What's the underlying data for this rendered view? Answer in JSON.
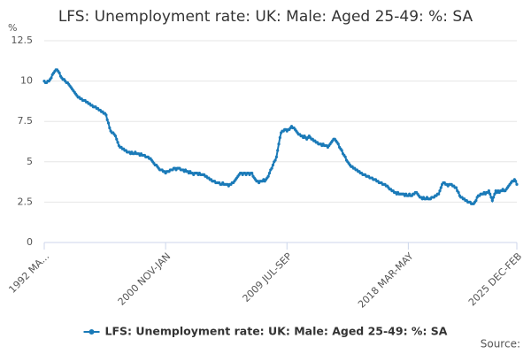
{
  "chart_data": {
    "type": "line",
    "title": "LFS: Unemployment rate: UK: Male: Aged 25-49: %: SA",
    "y_label": "%",
    "source": "Source:",
    "ylim": [
      0,
      12.5
    ],
    "yticks": [
      0,
      2.5,
      5,
      7.5,
      10,
      12.5
    ],
    "grid": true,
    "categories": [
      "1992 MA...",
      null,
      null,
      null,
      null,
      null,
      null,
      null,
      null,
      null,
      null,
      null,
      null,
      null,
      null,
      null,
      null,
      null,
      null,
      null,
      null,
      null,
      null,
      null,
      null,
      null,
      null,
      null,
      null,
      null,
      null,
      null,
      null,
      null,
      null,
      null,
      null,
      null,
      null,
      null,
      null,
      null,
      null,
      null,
      null,
      null,
      null,
      null,
      null,
      null,
      null,
      null,
      null,
      null,
      null,
      null,
      null,
      null,
      null,
      null,
      null,
      null,
      null,
      null,
      null,
      null,
      null,
      null,
      null,
      null,
      null,
      null,
      null,
      null,
      null,
      null,
      null,
      null,
      null,
      null,
      null,
      null,
      null,
      null,
      null,
      null,
      null,
      null,
      null,
      null,
      null,
      null,
      null,
      null,
      null,
      null,
      null,
      null,
      null,
      null,
      null,
      null,
      null,
      null,
      "2000 NOV-JAN",
      null,
      null,
      null,
      null,
      null,
      null,
      null,
      null,
      null,
      null,
      null,
      null,
      null,
      null,
      null,
      null,
      null,
      null,
      null,
      null,
      null,
      null,
      null,
      null,
      null,
      null,
      null,
      null,
      null,
      null,
      null,
      null,
      null,
      null,
      null,
      null,
      null,
      null,
      null,
      null,
      null,
      null,
      null,
      null,
      null,
      null,
      null,
      null,
      null,
      null,
      null,
      null,
      null,
      null,
      null,
      null,
      null,
      null,
      null,
      null,
      null,
      null,
      null,
      null,
      null,
      null,
      null,
      null,
      null,
      null,
      null,
      null,
      null,
      null,
      null,
      null,
      null,
      null,
      null,
      null,
      null,
      null,
      null,
      null,
      null,
      null,
      null,
      null,
      null,
      null,
      null,
      null,
      null,
      null,
      null,
      null,
      null,
      null,
      null,
      null,
      null,
      null,
      null,
      "2009 JUL-SEP",
      null,
      null,
      null,
      null,
      null,
      null,
      null,
      null,
      null,
      null,
      null,
      null,
      null,
      null,
      null,
      null,
      null,
      null,
      null,
      null,
      null,
      null,
      null,
      null,
      null,
      null,
      null,
      null,
      null,
      null,
      null,
      null,
      null,
      null,
      null,
      null,
      null,
      null,
      null,
      null,
      null,
      null,
      null,
      null,
      null,
      null,
      null,
      null,
      null,
      null,
      null,
      null,
      null,
      null,
      null,
      null,
      null,
      null,
      null,
      null,
      null,
      null,
      null,
      null,
      null,
      null,
      null,
      null,
      null,
      null,
      null,
      null,
      null,
      null,
      null,
      null,
      null,
      null,
      null,
      null,
      null,
      null,
      null,
      null,
      null,
      null,
      null,
      null,
      null,
      null,
      null,
      null,
      null,
      null,
      null,
      null,
      null,
      null,
      null,
      null,
      null,
      null,
      null,
      "2018 MAR-MAY",
      null,
      null,
      null,
      null,
      null,
      null,
      null,
      null,
      null,
      null,
      null,
      null,
      null,
      null,
      null,
      null,
      null,
      null,
      null,
      null,
      null,
      null,
      null,
      null,
      null,
      null,
      null,
      null,
      null,
      null,
      null,
      null,
      null,
      null,
      null,
      null,
      null,
      null,
      null,
      null,
      null,
      null,
      null,
      null,
      null,
      null,
      null,
      null,
      null,
      null,
      null,
      null,
      null,
      null,
      null,
      null,
      null,
      null,
      null,
      null,
      null,
      null,
      null,
      null,
      null,
      null,
      null,
      null,
      null,
      null,
      null,
      null,
      null,
      null,
      null,
      null,
      null,
      null,
      null,
      null,
      null,
      null,
      null,
      null,
      null,
      null,
      null,
      null,
      null,
      null,
      null,
      null,
      "2025 DEC-FEB"
    ],
    "series": [
      {
        "name": "LFS: Unemployment rate: UK: Male: Aged 25-49: %: SA",
        "color": "#1a7ab8",
        "values": [
          10.0,
          9.9,
          9.9,
          10.0,
          10.0,
          10.1,
          10.2,
          10.4,
          10.5,
          10.6,
          10.7,
          10.7,
          10.6,
          10.5,
          10.3,
          10.2,
          10.1,
          10.1,
          10.0,
          9.9,
          9.9,
          9.8,
          9.7,
          9.6,
          9.5,
          9.4,
          9.3,
          9.2,
          9.1,
          9.0,
          9.0,
          8.9,
          8.9,
          8.8,
          8.8,
          8.8,
          8.7,
          8.7,
          8.6,
          8.6,
          8.5,
          8.5,
          8.4,
          8.4,
          8.4,
          8.3,
          8.3,
          8.2,
          8.2,
          8.1,
          8.1,
          8.0,
          8.0,
          7.9,
          7.6,
          7.4,
          7.1,
          6.9,
          6.8,
          6.8,
          6.7,
          6.6,
          6.4,
          6.2,
          6.0,
          5.9,
          5.9,
          5.8,
          5.8,
          5.7,
          5.7,
          5.6,
          5.6,
          5.6,
          5.5,
          5.6,
          5.5,
          5.5,
          5.6,
          5.5,
          5.5,
          5.5,
          5.4,
          5.5,
          5.4,
          5.4,
          5.4,
          5.3,
          5.3,
          5.3,
          5.2,
          5.2,
          5.1,
          5.0,
          4.9,
          4.8,
          4.8,
          4.7,
          4.6,
          4.5,
          4.5,
          4.5,
          4.4,
          4.4,
          4.3,
          4.4,
          4.4,
          4.4,
          4.5,
          4.5,
          4.5,
          4.6,
          4.6,
          4.5,
          4.6,
          4.6,
          4.6,
          4.5,
          4.5,
          4.5,
          4.4,
          4.5,
          4.4,
          4.4,
          4.3,
          4.4,
          4.3,
          4.3,
          4.2,
          4.3,
          4.3,
          4.3,
          4.2,
          4.3,
          4.2,
          4.2,
          4.2,
          4.2,
          4.1,
          4.1,
          4.0,
          4.0,
          3.9,
          3.9,
          3.8,
          3.8,
          3.8,
          3.7,
          3.7,
          3.7,
          3.7,
          3.6,
          3.6,
          3.7,
          3.6,
          3.6,
          3.6,
          3.6,
          3.5,
          3.6,
          3.6,
          3.7,
          3.7,
          3.8,
          3.9,
          4.0,
          4.1,
          4.2,
          4.3,
          4.3,
          4.2,
          4.3,
          4.3,
          4.2,
          4.3,
          4.3,
          4.2,
          4.3,
          4.3,
          4.1,
          4.0,
          3.9,
          3.8,
          3.8,
          3.7,
          3.8,
          3.8,
          3.8,
          3.9,
          3.8,
          3.9,
          4.0,
          4.1,
          4.3,
          4.5,
          4.6,
          4.8,
          5.0,
          5.1,
          5.3,
          5.7,
          6.1,
          6.5,
          6.8,
          6.9,
          6.9,
          7.0,
          7.0,
          6.9,
          7.0,
          7.0,
          7.1,
          7.2,
          7.1,
          7.1,
          7.0,
          6.9,
          6.8,
          6.7,
          6.7,
          6.6,
          6.6,
          6.5,
          6.6,
          6.5,
          6.4,
          6.5,
          6.6,
          6.5,
          6.4,
          6.4,
          6.3,
          6.3,
          6.2,
          6.2,
          6.1,
          6.1,
          6.1,
          6.0,
          6.1,
          6.0,
          6.0,
          6.0,
          5.9,
          6.0,
          6.1,
          6.2,
          6.3,
          6.4,
          6.4,
          6.3,
          6.2,
          6.1,
          5.9,
          5.8,
          5.7,
          5.5,
          5.4,
          5.3,
          5.1,
          5.0,
          4.9,
          4.8,
          4.7,
          4.7,
          4.6,
          4.6,
          4.5,
          4.5,
          4.4,
          4.4,
          4.3,
          4.3,
          4.2,
          4.2,
          4.2,
          4.1,
          4.1,
          4.1,
          4.0,
          4.0,
          4.0,
          3.9,
          3.9,
          3.9,
          3.8,
          3.8,
          3.7,
          3.7,
          3.7,
          3.6,
          3.6,
          3.6,
          3.5,
          3.5,
          3.4,
          3.3,
          3.3,
          3.2,
          3.2,
          3.1,
          3.1,
          3.0,
          3.1,
          3.0,
          3.0,
          3.0,
          3.0,
          3.0,
          2.9,
          3.0,
          2.9,
          2.9,
          3.0,
          2.9,
          2.9,
          3.0,
          3.0,
          3.1,
          3.1,
          3.0,
          2.9,
          2.8,
          2.8,
          2.7,
          2.8,
          2.7,
          2.7,
          2.8,
          2.7,
          2.7,
          2.7,
          2.8,
          2.8,
          2.8,
          2.9,
          2.9,
          3.0,
          3.0,
          3.2,
          3.4,
          3.6,
          3.7,
          3.7,
          3.6,
          3.6,
          3.5,
          3.6,
          3.6,
          3.6,
          3.5,
          3.5,
          3.4,
          3.4,
          3.2,
          3.1,
          2.9,
          2.8,
          2.8,
          2.7,
          2.7,
          2.6,
          2.6,
          2.5,
          2.5,
          2.5,
          2.4,
          2.4,
          2.4,
          2.5,
          2.6,
          2.8,
          2.9,
          2.9,
          3.0,
          3.0,
          3.0,
          3.1,
          3.0,
          3.1,
          3.1,
          3.2,
          3.0,
          2.8,
          2.6,
          2.8,
          3.0,
          3.2,
          3.1,
          3.2,
          3.1,
          3.2,
          3.2,
          3.3,
          3.2,
          3.2,
          3.3,
          3.4,
          3.5,
          3.6,
          3.7,
          3.8,
          3.8,
          3.9,
          3.8,
          3.6
        ]
      }
    ]
  }
}
